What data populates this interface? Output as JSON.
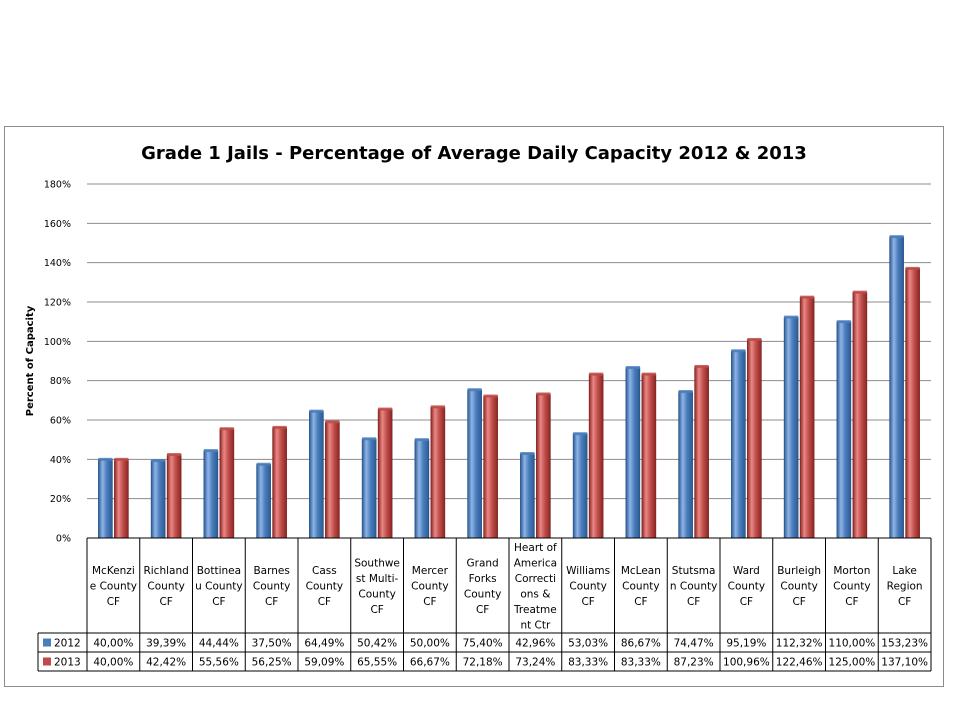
{
  "chart_data": {
    "type": "bar",
    "title": "Grade 1 Jails - Percentage of Average Daily Capacity 2012 & 2013",
    "ylabel": "Percent of Capacity",
    "xlabel": "",
    "ylim": [
      0,
      180
    ],
    "yticks": [
      "0%",
      "20%",
      "40%",
      "60%",
      "80%",
      "100%",
      "120%",
      "140%",
      "160%",
      "180%"
    ],
    "grid": true,
    "legend": "data-table",
    "categories": [
      [
        "McKenzi",
        "e County",
        "CF"
      ],
      [
        "Richland",
        "County",
        "CF"
      ],
      [
        "Bottinea",
        "u County",
        "CF"
      ],
      [
        "Barnes",
        "County",
        "CF"
      ],
      [
        "Cass",
        "County",
        "CF"
      ],
      [
        "Southwe",
        "st Multi-",
        "County",
        "CF"
      ],
      [
        "Mercer",
        "County",
        "CF"
      ],
      [
        "Grand",
        "Forks",
        "County",
        "CF"
      ],
      [
        "Heart of",
        "America",
        "Correcti",
        "ons &",
        "Treatme",
        "nt Ctr"
      ],
      [
        "Williams",
        "County",
        "CF"
      ],
      [
        "McLean",
        "County",
        "CF"
      ],
      [
        "Stutsma",
        "n County",
        "CF"
      ],
      [
        "Ward",
        "County",
        "CF"
      ],
      [
        "Burleigh",
        "County",
        "CF"
      ],
      [
        "Morton",
        "County",
        "CF"
      ],
      [
        "Lake",
        "Region",
        "CF"
      ]
    ],
    "series": [
      {
        "name": "2012",
        "color": "#4a7ebb",
        "values": [
          40.0,
          39.39,
          44.44,
          37.5,
          64.49,
          50.42,
          50.0,
          75.4,
          42.96,
          53.03,
          86.67,
          74.47,
          95.19,
          112.32,
          110.0,
          153.23
        ],
        "labels": [
          "40,00%",
          "39,39%",
          "44,44%",
          "37,50%",
          "64,49%",
          "50,42%",
          "50,00%",
          "75,40%",
          "42,96%",
          "53,03%",
          "86,67%",
          "74,47%",
          "95,19%",
          "112,32%",
          "110,00%",
          "153,23%"
        ]
      },
      {
        "name": "2013",
        "color": "#be4b48",
        "values": [
          40.0,
          42.42,
          55.56,
          56.25,
          59.09,
          65.55,
          66.67,
          72.18,
          73.24,
          83.33,
          83.33,
          87.23,
          100.96,
          122.46,
          125.0,
          137.1
        ],
        "labels": [
          "40,00%",
          "42,42%",
          "55,56%",
          "56,25%",
          "59,09%",
          "65,55%",
          "66,67%",
          "72,18%",
          "73,24%",
          "83,33%",
          "83,33%",
          "87,23%",
          "100,96%",
          "122,46%",
          "125,00%",
          "137,10%"
        ]
      }
    ]
  }
}
